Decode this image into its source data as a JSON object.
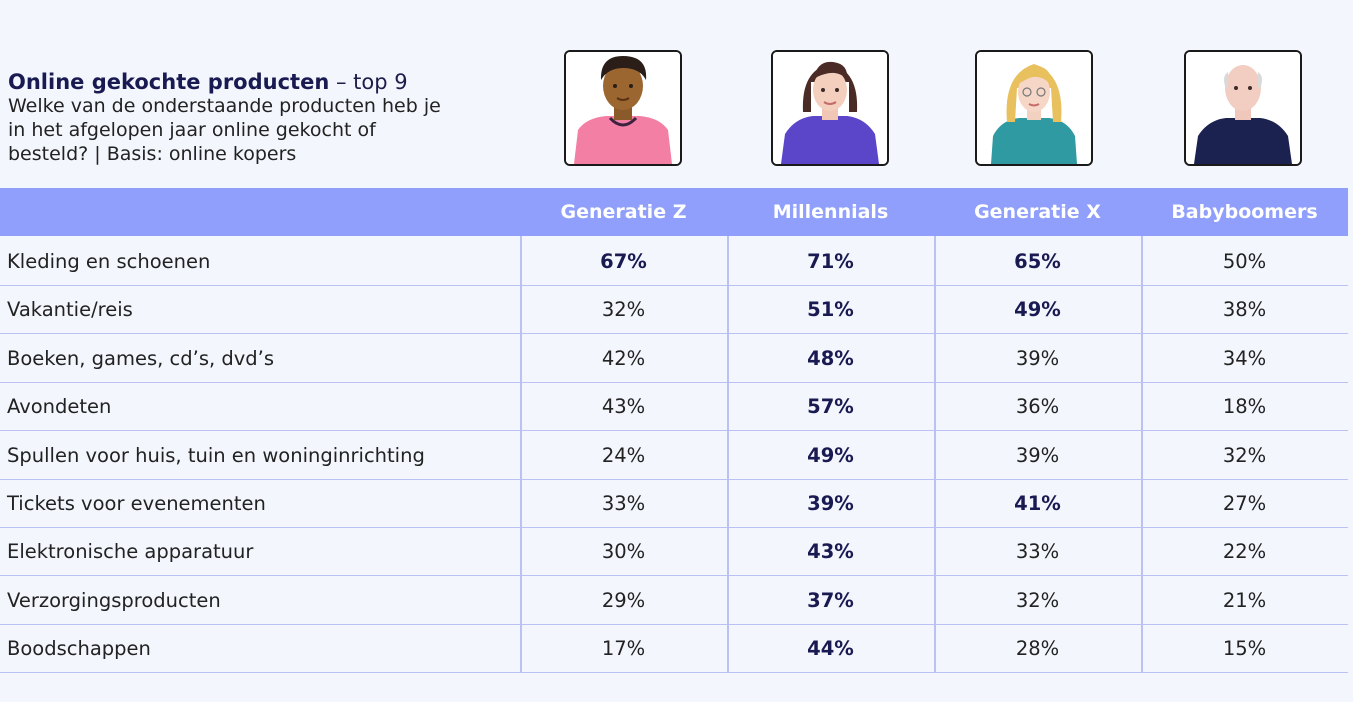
{
  "title": {
    "bold": "Online gekochte producten",
    "suffix": " – top 9",
    "line1": "Welke van de onderstaande producten heb je",
    "line2": "in het afgelopen jaar online gekocht of",
    "line3": "besteld? | Basis: online kopers"
  },
  "colors": {
    "header": "#8f9ffb",
    "grid": "#b9c2f2",
    "background": "#f3f6fd",
    "bold_text": "#1a1a52"
  },
  "avatars": [
    {
      "generation": "Generatie Z",
      "icon": "genz-avatar-icon"
    },
    {
      "generation": "Millennials",
      "icon": "millennial-avatar-icon"
    },
    {
      "generation": "Generatie X",
      "icon": "genx-avatar-icon"
    },
    {
      "generation": "Babyboomers",
      "icon": "babyboomer-avatar-icon"
    }
  ],
  "chart_data": {
    "type": "table",
    "title": "Online gekochte producten – top 9",
    "columns": [
      "Generatie Z",
      "Millennials",
      "Generatie X",
      "Babyboomers"
    ],
    "rows": [
      {
        "label": "Kleding en schoenen",
        "values": [
          "67%",
          "71%",
          "65%",
          "50%"
        ],
        "bold": [
          true,
          true,
          true,
          false
        ]
      },
      {
        "label": "Vakantie/reis",
        "values": [
          "32%",
          "51%",
          "49%",
          "38%"
        ],
        "bold": [
          false,
          true,
          true,
          false
        ]
      },
      {
        "label": "Boeken, games, cd’s, dvd’s",
        "values": [
          "42%",
          "48%",
          "39%",
          "34%"
        ],
        "bold": [
          false,
          true,
          false,
          false
        ]
      },
      {
        "label": "Avondeten",
        "values": [
          "43%",
          "57%",
          "36%",
          "18%"
        ],
        "bold": [
          false,
          true,
          false,
          false
        ]
      },
      {
        "label": "Spullen voor huis, tuin en woninginrichting",
        "values": [
          "24%",
          "49%",
          "39%",
          "32%"
        ],
        "bold": [
          false,
          true,
          false,
          false
        ]
      },
      {
        "label": "Tickets voor evenementen",
        "values": [
          "33%",
          "39%",
          "41%",
          "27%"
        ],
        "bold": [
          false,
          true,
          true,
          false
        ]
      },
      {
        "label": "Elektronische apparatuur",
        "values": [
          "30%",
          "43%",
          "33%",
          "22%"
        ],
        "bold": [
          false,
          true,
          false,
          false
        ]
      },
      {
        "label": "Verzorgingsproducten",
        "values": [
          "29%",
          "37%",
          "32%",
          "21%"
        ],
        "bold": [
          false,
          true,
          false,
          false
        ]
      },
      {
        "label": "Boodschappen",
        "values": [
          "17%",
          "44%",
          "28%",
          "15%"
        ],
        "bold": [
          false,
          true,
          false,
          false
        ]
      }
    ]
  }
}
